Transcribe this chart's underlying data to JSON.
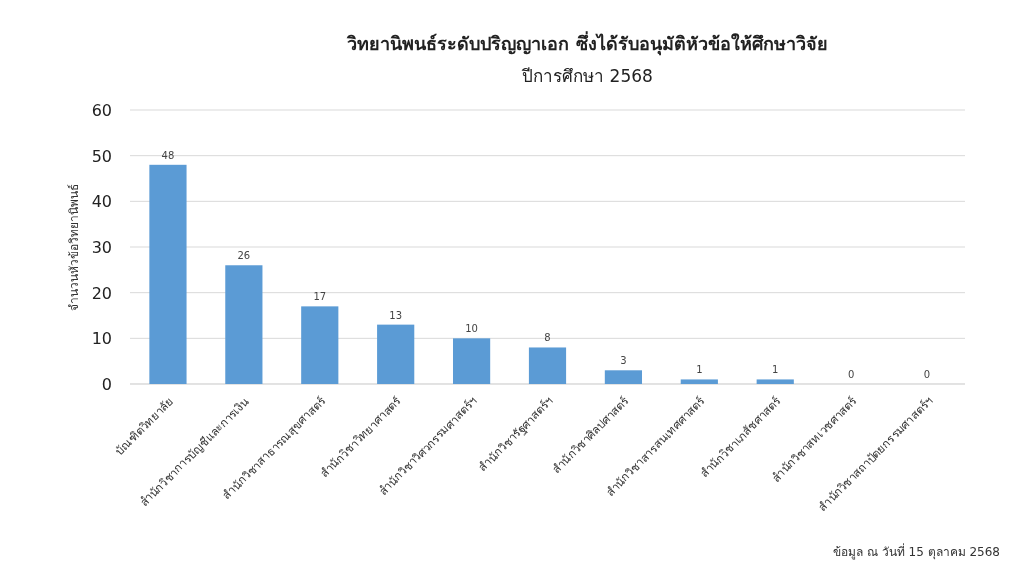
{
  "chart_data": {
    "type": "bar",
    "title": "วิทยานิพนธ์ระดับปริญญาเอก ซึ่งได้รับอนุมัติหัวข้อให้ศึกษาวิจัย",
    "subtitle": "ปีการศึกษา 2568",
    "ylabel": "จำนวนหัวข้อวิทยานิพนธ์",
    "categories": [
      "บัณฑิตวิทยาลัย",
      "สำนักวิชาการบัญชีและการเงิน",
      "สำนักวิชาสาธารณสุขศาสตร์",
      "สำนักวิชาวิทยาศาสตร์",
      "สำนักวิชาวิศวกรรมศาสตร์ฯ",
      "สำนักวิชารัฐศาสตร์ฯ",
      "สำนักวิชาศิลปศาสตร์",
      "สำนักวิชาสารสนเทศศาสตร์",
      "สำนักวิชาเภสัชศาสตร์",
      "สำนักวิชาสหเวชศาสตร์",
      "สำนักวิชาสถาปัตยกรรมศาสตร์ฯ"
    ],
    "values": [
      48,
      26,
      17,
      13,
      10,
      8,
      3,
      1,
      1,
      0,
      0
    ],
    "color": "#5b9bd5",
    "ylim": [
      0,
      60
    ],
    "yticks": [
      0,
      10,
      20,
      30,
      40,
      50,
      60
    ],
    "grid": "y",
    "data_labels": true,
    "annotations": [
      "ข้อมูล ณ วันที่ 15 ตุลาคม 2568"
    ]
  }
}
